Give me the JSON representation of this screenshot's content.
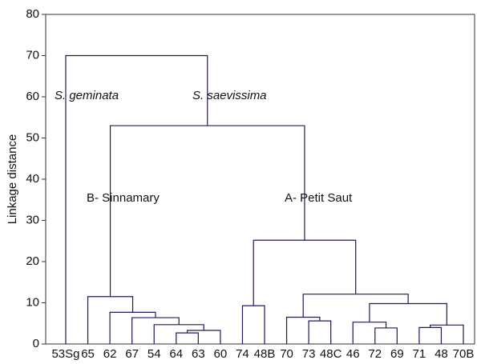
{
  "chart_data": {
    "type": "dendrogram",
    "ylabel": "Linkage distance",
    "ylim": [
      0,
      80
    ],
    "yticks": [
      0,
      10,
      20,
      30,
      40,
      50,
      60,
      70,
      80
    ],
    "color": "#1c1c5c",
    "annotations": [
      "S. geminata",
      "S. saevissima",
      "B- Sinnamary",
      "A- Petit Saut"
    ],
    "tree": {
      "height": 70,
      "children": [
        {
          "label": "53Sg"
        },
        {
          "height": 53,
          "children": [
            {
              "height": 11.5,
              "children": [
                {
                  "label": "65"
                },
                {
                  "height": 7.7,
                  "children": [
                    {
                      "label": "62"
                    },
                    {
                      "height": 6.4,
                      "children": [
                        {
                          "label": "67"
                        },
                        {
                          "height": 4.7,
                          "children": [
                            {
                              "label": "54"
                            },
                            {
                              "height": 3.3,
                              "children": [
                                {
                                  "height": 2.7,
                                  "children": [
                                    {
                                      "label": "64"
                                    },
                                    {
                                      "label": "63"
                                    }
                                  ]
                                },
                                {
                                  "label": "60"
                                }
                              ]
                            }
                          ]
                        }
                      ]
                    }
                  ]
                }
              ]
            },
            {
              "height": 25.2,
              "children": [
                {
                  "height": 9.3,
                  "children": [
                    {
                      "label": "74"
                    },
                    {
                      "label": "48B"
                    }
                  ]
                },
                {
                  "height": 12.1,
                  "children": [
                    {
                      "height": 6.5,
                      "children": [
                        {
                          "label": "70"
                        },
                        {
                          "height": 5.6,
                          "children": [
                            {
                              "label": "73"
                            },
                            {
                              "label": "48C"
                            }
                          ]
                        }
                      ]
                    },
                    {
                      "height": 9.8,
                      "children": [
                        {
                          "height": 5.3,
                          "children": [
                            {
                              "label": "46"
                            },
                            {
                              "height": 3.9,
                              "children": [
                                {
                                  "label": "72"
                                },
                                {
                                  "label": "69"
                                }
                              ]
                            }
                          ]
                        },
                        {
                          "height": 4.6,
                          "children": [
                            {
                              "height": 4.0,
                              "children": [
                                {
                                  "label": "71"
                                },
                                {
                                  "label": "48"
                                }
                              ]
                            },
                            {
                              "label": "70B"
                            }
                          ]
                        }
                      ]
                    }
                  ]
                }
              ]
            }
          ]
        }
      ]
    }
  }
}
